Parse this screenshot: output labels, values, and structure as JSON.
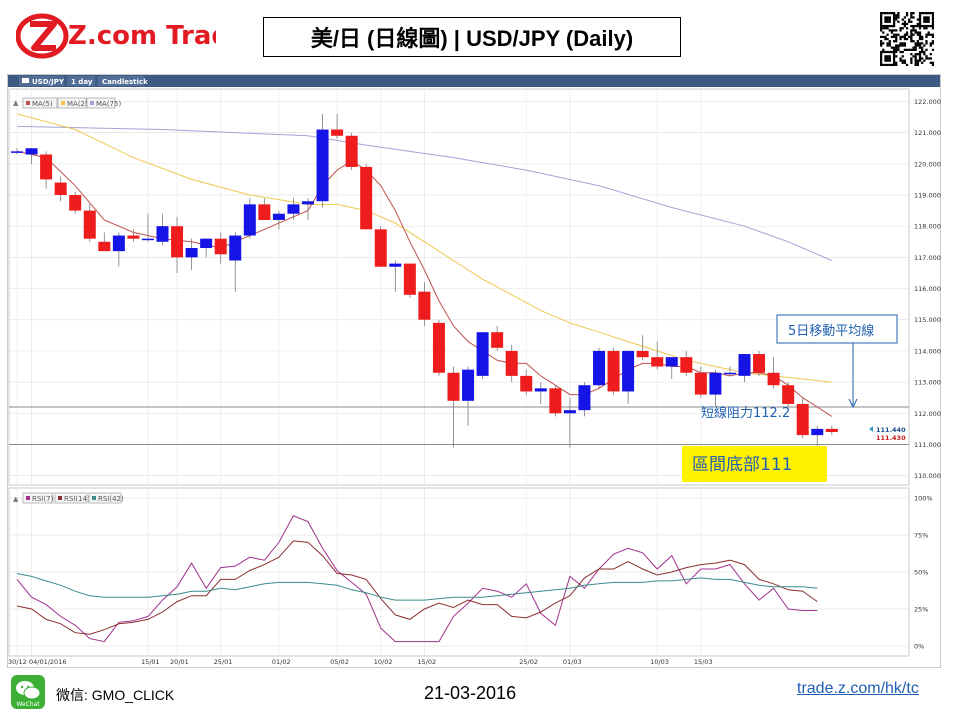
{
  "header": {
    "logo_text": "Z.com Trade",
    "title": "美/日 (日線圖) | USD/JPY  (Daily)"
  },
  "toolbar": {
    "symbol": "USD/JPY",
    "timeframe": "1 day",
    "chart_type": "Candlestick"
  },
  "price_legend": [
    "MA(5)",
    "MA(25)",
    "MA(75)"
  ],
  "rsi_legend": [
    "RSI(7)",
    "RSI(14)",
    "RSI(42)"
  ],
  "annotations": {
    "ma5_label": "5日移動平均線",
    "resistance": "短線阻力112.2",
    "range_bottom": "區間底部111",
    "price_tag_bid": "111.440",
    "price_tag_ask": "111.430"
  },
  "footer": {
    "wechat_label": "微信: GMO_CLICK",
    "wechat_icon_label": "WeChat",
    "date": "21-03-2016",
    "url": "trade.z.com/hk/tc"
  },
  "colors": {
    "up": "#1414e6",
    "down": "#ee1c1c",
    "ma5": "#c0504d",
    "ma25": "#f0c850",
    "ma75": "#a8a0d8",
    "rsi7": "#a0308c",
    "rsi14": "#8b3030",
    "rsi42": "#3c8c8c",
    "callout": "#fff200"
  },
  "chart_data": [
    {
      "type": "candlestick",
      "symbol": "USD/JPY",
      "interval": "1 day",
      "y_ticks": [
        "122.000",
        "121.000",
        "120.000",
        "119.000",
        "118.000",
        "117.000",
        "116.000",
        "115.000",
        "114.000",
        "113.000",
        "112.000",
        "111.000",
        "110.000"
      ],
      "ylim": [
        109.7,
        122.4
      ],
      "x_ticks": [
        "30/12",
        "04/01/2016",
        "15/01",
        "20/01",
        "25/01",
        "01/02",
        "05/02",
        "10/02",
        "15/02",
        "25/02",
        "01/03",
        "10/03",
        "15/03"
      ],
      "x_tick_index": [
        0,
        1,
        9,
        11,
        14,
        18,
        22,
        25,
        28,
        35,
        38,
        44,
        47
      ],
      "hlines": [
        112.2,
        111.0
      ],
      "candles": [
        {
          "o": 120.4,
          "h": 120.5,
          "l": 120.3,
          "c": 120.4
        },
        {
          "o": 120.3,
          "h": 120.5,
          "l": 120.0,
          "c": 120.5
        },
        {
          "o": 120.3,
          "h": 120.4,
          "l": 119.2,
          "c": 119.5
        },
        {
          "o": 119.4,
          "h": 119.6,
          "l": 118.8,
          "c": 119.0
        },
        {
          "o": 119.0,
          "h": 119.1,
          "l": 118.4,
          "c": 118.5
        },
        {
          "o": 118.5,
          "h": 118.7,
          "l": 117.5,
          "c": 117.6
        },
        {
          "o": 117.5,
          "h": 117.8,
          "l": 117.2,
          "c": 117.2
        },
        {
          "o": 117.2,
          "h": 117.8,
          "l": 116.7,
          "c": 117.7
        },
        {
          "o": 117.7,
          "h": 117.9,
          "l": 117.5,
          "c": 117.6
        },
        {
          "o": 117.6,
          "h": 118.4,
          "l": 117.5,
          "c": 117.6
        },
        {
          "o": 117.5,
          "h": 118.4,
          "l": 117.4,
          "c": 118.0
        },
        {
          "o": 118.0,
          "h": 118.3,
          "l": 116.5,
          "c": 117.0
        },
        {
          "o": 117.0,
          "h": 117.6,
          "l": 116.6,
          "c": 117.3
        },
        {
          "o": 117.3,
          "h": 117.6,
          "l": 117.0,
          "c": 117.6
        },
        {
          "o": 117.6,
          "h": 117.8,
          "l": 116.8,
          "c": 117.1
        },
        {
          "o": 116.9,
          "h": 117.8,
          "l": 115.9,
          "c": 117.7
        },
        {
          "o": 117.7,
          "h": 118.9,
          "l": 117.6,
          "c": 118.7
        },
        {
          "o": 118.7,
          "h": 118.9,
          "l": 118.2,
          "c": 118.2
        },
        {
          "o": 118.2,
          "h": 118.5,
          "l": 117.9,
          "c": 118.4
        },
        {
          "o": 118.4,
          "h": 118.9,
          "l": 118.2,
          "c": 118.7
        },
        {
          "o": 118.7,
          "h": 118.9,
          "l": 118.2,
          "c": 118.8
        },
        {
          "o": 118.8,
          "h": 121.6,
          "l": 118.6,
          "c": 121.1
        },
        {
          "o": 121.1,
          "h": 121.6,
          "l": 120.8,
          "c": 120.9
        },
        {
          "o": 120.9,
          "h": 121.0,
          "l": 119.8,
          "c": 119.9
        },
        {
          "o": 119.9,
          "h": 120.0,
          "l": 117.9,
          "c": 117.9
        },
        {
          "o": 117.9,
          "h": 118.0,
          "l": 116.7,
          "c": 116.7
        },
        {
          "o": 116.7,
          "h": 116.9,
          "l": 115.9,
          "c": 116.8
        },
        {
          "o": 116.8,
          "h": 116.8,
          "l": 115.7,
          "c": 115.8
        },
        {
          "o": 115.9,
          "h": 116.2,
          "l": 114.8,
          "c": 115.0
        },
        {
          "o": 114.9,
          "h": 115.0,
          "l": 113.2,
          "c": 113.3
        },
        {
          "o": 113.3,
          "h": 113.5,
          "l": 110.9,
          "c": 112.4
        },
        {
          "o": 112.4,
          "h": 113.5,
          "l": 111.6,
          "c": 113.4
        },
        {
          "o": 113.2,
          "h": 114.6,
          "l": 113.1,
          "c": 114.6
        },
        {
          "o": 114.6,
          "h": 114.8,
          "l": 114.0,
          "c": 114.1
        },
        {
          "o": 114.0,
          "h": 114.2,
          "l": 113.0,
          "c": 113.2
        },
        {
          "o": 113.2,
          "h": 113.4,
          "l": 112.6,
          "c": 112.7
        },
        {
          "o": 112.7,
          "h": 113.0,
          "l": 112.3,
          "c": 112.8
        },
        {
          "o": 112.8,
          "h": 112.9,
          "l": 111.9,
          "c": 112.0
        },
        {
          "o": 112.0,
          "h": 112.5,
          "l": 110.9,
          "c": 112.1
        },
        {
          "o": 112.1,
          "h": 113.0,
          "l": 111.9,
          "c": 112.9
        },
        {
          "o": 112.9,
          "h": 114.1,
          "l": 112.8,
          "c": 114.0
        },
        {
          "o": 114.0,
          "h": 114.1,
          "l": 112.6,
          "c": 112.7
        },
        {
          "o": 112.7,
          "h": 114.0,
          "l": 112.3,
          "c": 114.0
        },
        {
          "o": 114.0,
          "h": 114.5,
          "l": 113.7,
          "c": 113.8
        },
        {
          "o": 113.8,
          "h": 114.3,
          "l": 113.4,
          "c": 113.5
        },
        {
          "o": 113.5,
          "h": 113.8,
          "l": 113.1,
          "c": 113.8
        },
        {
          "o": 113.8,
          "h": 114.0,
          "l": 113.2,
          "c": 113.3
        },
        {
          "o": 113.3,
          "h": 113.5,
          "l": 112.5,
          "c": 112.6
        },
        {
          "o": 112.6,
          "h": 113.4,
          "l": 112.2,
          "c": 113.3
        },
        {
          "o": 113.3,
          "h": 113.5,
          "l": 113.2,
          "c": 113.3
        },
        {
          "o": 113.2,
          "h": 113.9,
          "l": 113.0,
          "c": 113.9
        },
        {
          "o": 113.9,
          "h": 114.0,
          "l": 113.2,
          "c": 113.3
        },
        {
          "o": 113.3,
          "h": 113.8,
          "l": 112.8,
          "c": 112.9
        },
        {
          "o": 112.9,
          "h": 113.0,
          "l": 112.2,
          "c": 112.3
        },
        {
          "o": 112.3,
          "h": 112.5,
          "l": 111.2,
          "c": 111.3
        },
        {
          "o": 111.3,
          "h": 111.6,
          "l": 110.7,
          "c": 111.5
        },
        {
          "o": 111.5,
          "h": 111.6,
          "l": 111.3,
          "c": 111.4
        }
      ],
      "ma5": [
        [
          0,
          120.4
        ],
        [
          2,
          120.2
        ],
        [
          4,
          119.3
        ],
        [
          6,
          118.2
        ],
        [
          8,
          117.8
        ],
        [
          10,
          117.6
        ],
        [
          12,
          117.5
        ],
        [
          14,
          117.3
        ],
        [
          16,
          117.7
        ],
        [
          18,
          118.1
        ],
        [
          20,
          118.5
        ],
        [
          21,
          119.3
        ],
        [
          22,
          119.8
        ],
        [
          23,
          120.1
        ],
        [
          24,
          119.8
        ],
        [
          25,
          119.3
        ],
        [
          26,
          118.5
        ],
        [
          27,
          117.5
        ],
        [
          28,
          116.6
        ],
        [
          29,
          115.6
        ],
        [
          30,
          114.8
        ],
        [
          31,
          114.3
        ],
        [
          32,
          114.0
        ],
        [
          33,
          113.7
        ],
        [
          34,
          113.6
        ],
        [
          35,
          113.6
        ],
        [
          36,
          113.2
        ],
        [
          37,
          112.9
        ],
        [
          38,
          112.6
        ],
        [
          39,
          112.6
        ],
        [
          40,
          112.8
        ],
        [
          41,
          113.1
        ],
        [
          42,
          113.4
        ],
        [
          43,
          113.6
        ],
        [
          44,
          113.6
        ],
        [
          45,
          113.5
        ],
        [
          46,
          113.5
        ],
        [
          47,
          113.3
        ],
        [
          48,
          113.3
        ],
        [
          49,
          113.2
        ],
        [
          50,
          113.3
        ],
        [
          51,
          113.3
        ],
        [
          52,
          113.2
        ],
        [
          53,
          112.9
        ],
        [
          54,
          112.5
        ],
        [
          55,
          112.2
        ],
        [
          56,
          111.9
        ]
      ],
      "ma25": [
        [
          0,
          121.6
        ],
        [
          4,
          121.1
        ],
        [
          8,
          120.2
        ],
        [
          12,
          119.5
        ],
        [
          16,
          119.0
        ],
        [
          20,
          118.7
        ],
        [
          22,
          118.7
        ],
        [
          24,
          118.5
        ],
        [
          26,
          118.1
        ],
        [
          28,
          117.5
        ],
        [
          30,
          116.9
        ],
        [
          32,
          116.3
        ],
        [
          34,
          115.8
        ],
        [
          36,
          115.3
        ],
        [
          38,
          114.9
        ],
        [
          40,
          114.6
        ],
        [
          42,
          114.3
        ],
        [
          44,
          114.0
        ],
        [
          46,
          113.7
        ],
        [
          48,
          113.5
        ],
        [
          50,
          113.3
        ],
        [
          52,
          113.2
        ],
        [
          54,
          113.1
        ],
        [
          56,
          113.0
        ]
      ],
      "ma75": [
        [
          0,
          121.2
        ],
        [
          10,
          121.1
        ],
        [
          20,
          120.9
        ],
        [
          24,
          120.6
        ],
        [
          30,
          120.2
        ],
        [
          35,
          119.8
        ],
        [
          40,
          119.3
        ],
        [
          45,
          118.6
        ],
        [
          50,
          118.0
        ],
        [
          53,
          117.5
        ],
        [
          56,
          116.9
        ]
      ]
    },
    {
      "type": "line",
      "title": "RSI",
      "y_ticks": [
        "100%",
        "75%",
        "50%",
        "25%",
        "0%"
      ],
      "ylim": [
        0,
        100
      ],
      "x_ticks": [
        "30/12",
        "04/01/2016",
        "15/01",
        "20/01",
        "25/01",
        "01/02",
        "05/02",
        "10/02",
        "15/02",
        "25/02",
        "01/03",
        "10/03",
        "15/03"
      ],
      "series": [
        {
          "name": "RSI(7)",
          "values": [
            45,
            33,
            28,
            20,
            14,
            5,
            3,
            16,
            17,
            20,
            31,
            40,
            56,
            39,
            53,
            54,
            60,
            58,
            70,
            88,
            84,
            66,
            51,
            43,
            35,
            12,
            3,
            3,
            3,
            3,
            20,
            29,
            39,
            37,
            33,
            42,
            22,
            14,
            47,
            39,
            52,
            62,
            66,
            63,
            52,
            61,
            42,
            52,
            52,
            55,
            42,
            31,
            39,
            25,
            24,
            24
          ]
        },
        {
          "name": "RSI(14)",
          "values": [
            27,
            25,
            18,
            15,
            9,
            8,
            11,
            15,
            16,
            18,
            23,
            30,
            34,
            34,
            45,
            45,
            51,
            55,
            60,
            71,
            70,
            61,
            49,
            48,
            45,
            32,
            21,
            18,
            25,
            29,
            26,
            31,
            28,
            28,
            20,
            19,
            23,
            29,
            34,
            46,
            52,
            52,
            57,
            52,
            48,
            50,
            53,
            55,
            56,
            58,
            55,
            45,
            42,
            38,
            37,
            30
          ]
        },
        {
          "name": "RSI(42)",
          "values": [
            49,
            47,
            44,
            41,
            37,
            34,
            33,
            33,
            33,
            33,
            34,
            35,
            37,
            37,
            39,
            38,
            40,
            42,
            43,
            43,
            43,
            42,
            41,
            38,
            36,
            33,
            31,
            31,
            31,
            32,
            33,
            33,
            33,
            34,
            35,
            36,
            37,
            38,
            39,
            41,
            42,
            43,
            43,
            43,
            44,
            44,
            45,
            46,
            45,
            45,
            43,
            41,
            40,
            40,
            40,
            39
          ]
        }
      ]
    }
  ]
}
